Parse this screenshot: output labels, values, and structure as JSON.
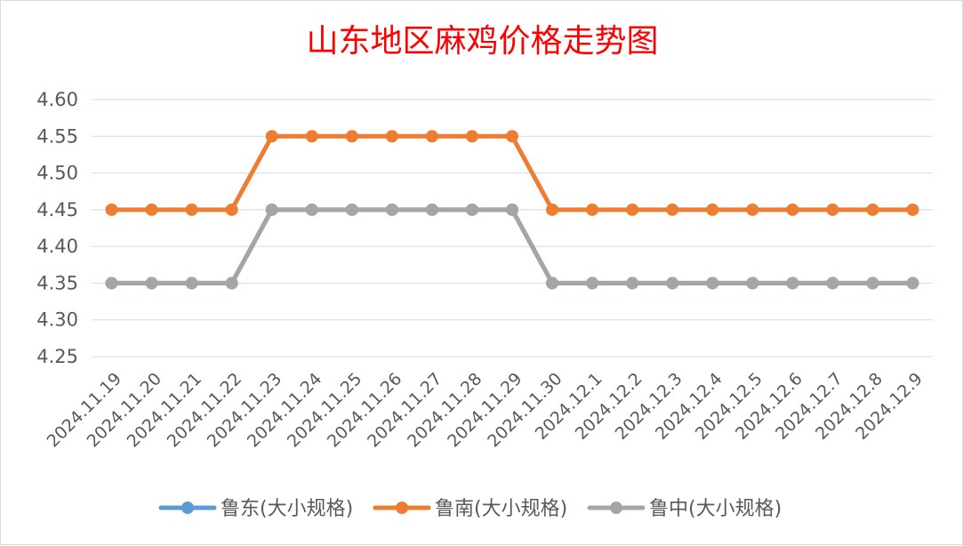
{
  "chart_data": {
    "type": "line",
    "title": "山东地区麻鸡价格走势图",
    "xlabel": "",
    "ylabel": "",
    "categories": [
      "2024.11.19",
      "2024.11.20",
      "2024.11.21",
      "2024.11.22",
      "2024.11.23",
      "2024.11.24",
      "2024.11.25",
      "2024.11.26",
      "2024.11.27",
      "2024.11.28",
      "2024.11.29",
      "2024.11.30",
      "2024.12.1",
      "2024.12.2",
      "2024.12.3",
      "2024.12.4",
      "2024.12.5",
      "2024.12.6",
      "2024.12.7",
      "2024.12.8",
      "2024.12.9"
    ],
    "ylim": [
      4.25,
      4.6
    ],
    "yticks": [
      "4.25",
      "4.30",
      "4.35",
      "4.40",
      "4.45",
      "4.50",
      "4.55",
      "4.60"
    ],
    "grid": true,
    "legend_position": "bottom",
    "series": [
      {
        "name": "鲁东(大小规格)",
        "color": "#5b9bd5",
        "values": [
          4.35,
          4.35,
          4.35,
          4.35,
          4.45,
          4.45,
          4.45,
          4.45,
          4.45,
          4.45,
          4.45,
          4.35,
          4.35,
          4.35,
          4.35,
          4.35,
          4.35,
          4.35,
          4.35,
          4.35,
          4.35
        ]
      },
      {
        "name": "鲁南(大小规格)",
        "color": "#ed7d31",
        "values": [
          4.45,
          4.45,
          4.45,
          4.45,
          4.55,
          4.55,
          4.55,
          4.55,
          4.55,
          4.55,
          4.55,
          4.45,
          4.45,
          4.45,
          4.45,
          4.45,
          4.45,
          4.45,
          4.45,
          4.45,
          4.45
        ]
      },
      {
        "name": "鲁中(大小规格)",
        "color": "#a5a5a5",
        "values": [
          4.35,
          4.35,
          4.35,
          4.35,
          4.45,
          4.45,
          4.45,
          4.45,
          4.45,
          4.45,
          4.45,
          4.35,
          4.35,
          4.35,
          4.35,
          4.35,
          4.35,
          4.35,
          4.35,
          4.35,
          4.35
        ]
      }
    ]
  }
}
